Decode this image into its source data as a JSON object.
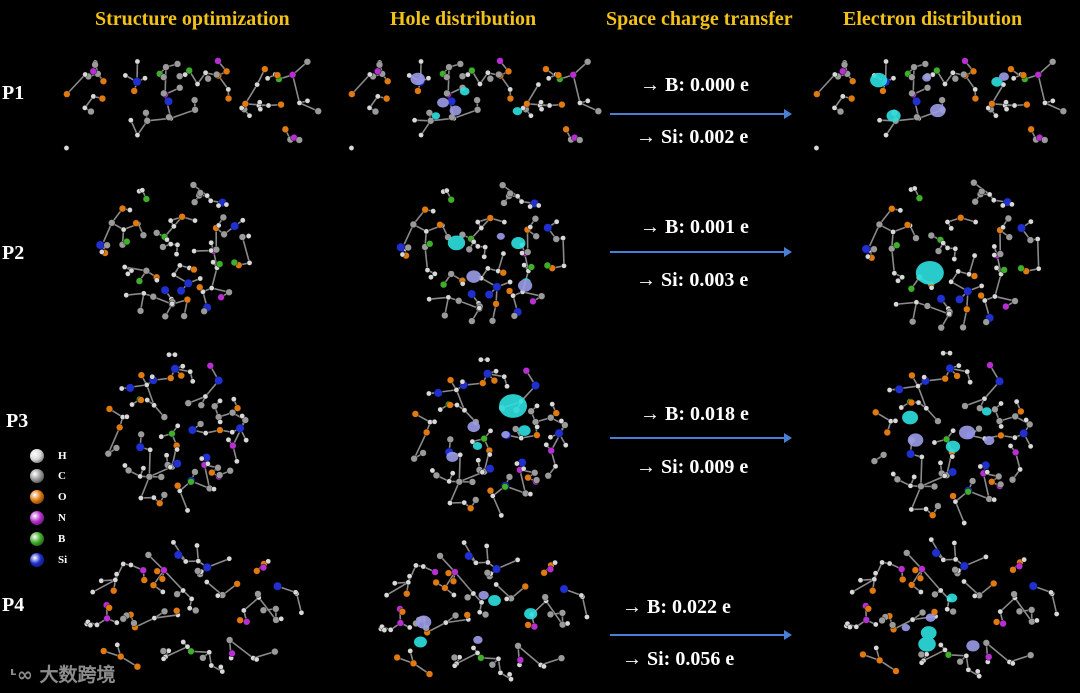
{
  "headers": {
    "structure": "Structure optimization",
    "hole": "Hole distribution",
    "transfer": "Space charge transfer",
    "electron": "Electron distribution"
  },
  "rows": [
    {
      "label": "P1",
      "b_text": "B: 0.000 e",
      "si_text": "Si: 0.002 e"
    },
    {
      "label": "P2",
      "b_text": "B: 0.001 e",
      "si_text": "Si: 0.003 e"
    },
    {
      "label": "P3",
      "b_text": "B: 0.018 e",
      "si_text": "Si: 0.009 e"
    },
    {
      "label": "P4",
      "b_text": "B: 0.022 e",
      "si_text": "Si: 0.056 e"
    }
  ],
  "arrow_prefix": "→",
  "legend": [
    {
      "symbol": "H",
      "color": "#d8d8d8"
    },
    {
      "symbol": "C",
      "color": "#9a9a9a"
    },
    {
      "symbol": "O",
      "color": "#e07a10"
    },
    {
      "symbol": "N",
      "color": "#b82ed0"
    },
    {
      "symbol": "B",
      "color": "#3fae2a"
    },
    {
      "symbol": "Si",
      "color": "#1f2fd0"
    }
  ],
  "colors": {
    "header": "#f2c218",
    "arrow": "#4a7fd6",
    "isosurface_cyan": "#2ee0e0",
    "isosurface_lavender": "#9c9ce8"
  },
  "watermark": "大数跨境"
}
